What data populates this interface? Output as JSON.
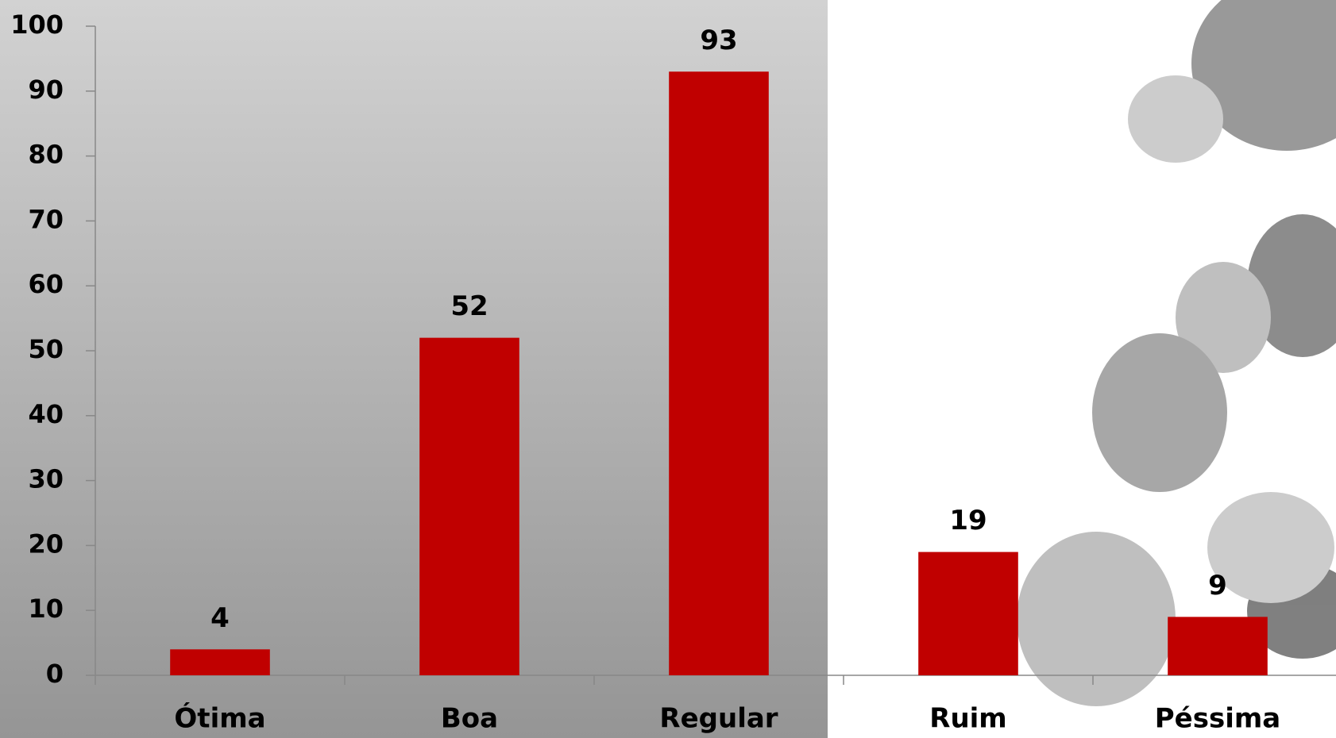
{
  "chart_data": {
    "type": "bar",
    "categories": [
      "Ótima",
      "Boa",
      "Regular",
      "Ruim",
      "Péssima"
    ],
    "values": [
      4,
      52,
      93,
      19,
      9
    ],
    "color": "#c00000",
    "ylim": [
      0,
      100
    ],
    "yticks": [
      0,
      10,
      20,
      30,
      40,
      50,
      60,
      70,
      80,
      90,
      100
    ]
  }
}
